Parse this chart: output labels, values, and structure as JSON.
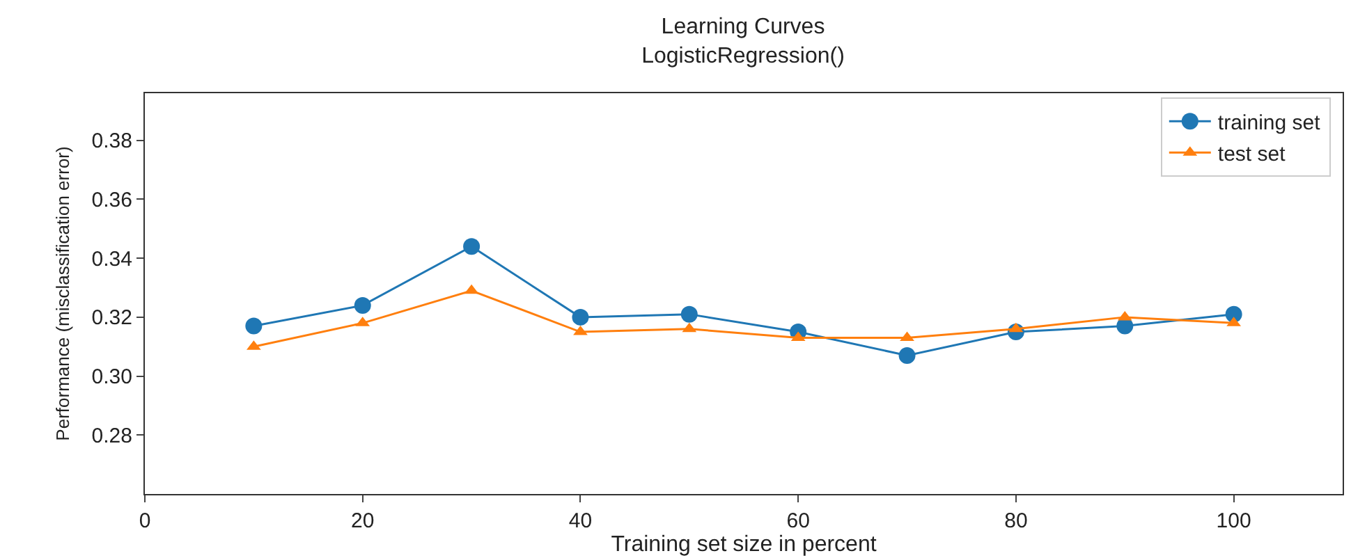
{
  "chart_data": {
    "type": "line",
    "title": "Learning Curves",
    "subtitle": "LogisticRegression()",
    "xlabel": "Training set size in percent",
    "ylabel": "Performance (misclassification error)",
    "x": [
      10,
      20,
      30,
      40,
      50,
      60,
      70,
      80,
      90,
      100
    ],
    "series": [
      {
        "name": "training set",
        "color": "#1f77b4",
        "marker": "circle",
        "values": [
          0.317,
          0.324,
          0.344,
          0.32,
          0.321,
          0.315,
          0.307,
          0.315,
          0.317,
          0.321
        ]
      },
      {
        "name": "test set",
        "color": "#ff7f0e",
        "marker": "triangle",
        "values": [
          0.31,
          0.318,
          0.329,
          0.315,
          0.316,
          0.313,
          0.313,
          0.316,
          0.32,
          0.318
        ]
      }
    ],
    "xlim": [
      0,
      110
    ],
    "xticks": [
      0,
      20,
      40,
      60,
      80,
      100
    ],
    "ylim": [
      0.26,
      0.396
    ],
    "yticks": [
      0.28,
      {
        "value": 0.3,
        "label": "0.30"
      },
      0.32,
      0.34,
      0.36,
      0.38
    ],
    "legend": "top right",
    "line_style": "solid"
  }
}
